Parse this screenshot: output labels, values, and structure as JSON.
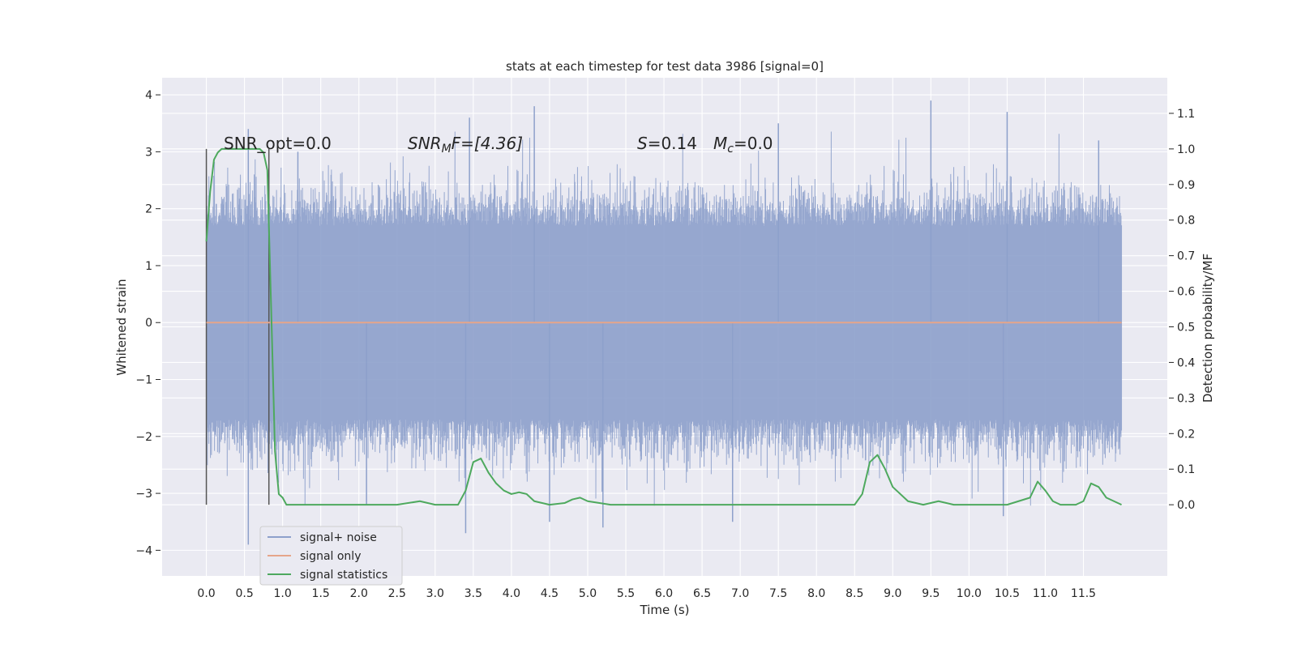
{
  "chart_data": {
    "type": "line",
    "title": "stats at each timestep for test data 3986 [signal=0]",
    "xlabel": "Time (s)",
    "ylabel": "Whitened strain",
    "ylabel_right": "Detection probability/MF",
    "xlim": [
      -0.58,
      12.6
    ],
    "ylim": [
      -4.45,
      4.3
    ],
    "ylim_right": [
      -0.2,
      1.2
    ],
    "x_ticks": [
      "0.0",
      "0.5",
      "1.0",
      "1.5",
      "2.0",
      "2.5",
      "3.0",
      "3.5",
      "4.0",
      "4.5",
      "5.0",
      "5.5",
      "6.0",
      "6.5",
      "7.0",
      "7.5",
      "8.0",
      "8.5",
      "9.0",
      "9.5",
      "10.0",
      "10.5",
      "11.0",
      "11.5"
    ],
    "y_ticks": [
      "4",
      "3",
      "2",
      "1",
      "0",
      "−1",
      "−2",
      "−3",
      "−4"
    ],
    "y_ticks_right": [
      "1.1",
      "1.0",
      "0.9",
      "0.8",
      "0.7",
      "0.6",
      "0.5",
      "0.4",
      "0.3",
      "0.2",
      "0.1",
      "0.0"
    ],
    "grid": true,
    "annotations": {
      "snr_opt": "SNR_opt=0.0",
      "snr_mf_base": "SNR",
      "snr_mf_sub": "M",
      "snr_mf_rest": "F=[4.36]",
      "s_label": "S",
      "s_value": "=0.14",
      "mc_base": "M",
      "mc_sub": "c",
      "mc_value": "=0.0"
    },
    "vlines_x": [
      0.0,
      0.82
    ],
    "legend": {
      "placement": "lower-left",
      "entries": [
        {
          "label": "signal+ noise",
          "color": "#8da0cb"
        },
        {
          "label": "signal only",
          "color": "#e5a58a"
        },
        {
          "label": "signal statistics",
          "color": "#4ea95e"
        }
      ]
    },
    "series": [
      {
        "name": "signal+ noise",
        "color": "#8da0cb",
        "x_range": [
          0.0,
          12.0
        ],
        "envelope_upper_typical": 2.0,
        "envelope_lower_typical": -2.0,
        "peaks": [
          {
            "x": 0.55,
            "y": 3.4
          },
          {
            "x": 0.55,
            "y": -3.9
          },
          {
            "x": 1.2,
            "y": 3.0
          },
          {
            "x": 2.1,
            "y": -3.2
          },
          {
            "x": 3.45,
            "y": 3.6
          },
          {
            "x": 3.4,
            "y": -3.7
          },
          {
            "x": 4.3,
            "y": 3.8
          },
          {
            "x": 4.5,
            "y": -3.5
          },
          {
            "x": 5.2,
            "y": -3.6
          },
          {
            "x": 6.9,
            "y": -3.5
          },
          {
            "x": 7.5,
            "y": 3.5
          },
          {
            "x": 9.5,
            "y": 3.9
          },
          {
            "x": 10.5,
            "y": 3.7
          },
          {
            "x": 10.45,
            "y": -3.4
          },
          {
            "x": 11.7,
            "y": 3.2
          }
        ]
      },
      {
        "name": "signal only",
        "color": "#e5a58a",
        "x": [
          0.0,
          12.0
        ],
        "y": [
          0.0,
          0.0
        ]
      },
      {
        "name": "signal statistics",
        "color": "#4ea95e",
        "axis": "right",
        "x": [
          0.0,
          0.05,
          0.1,
          0.15,
          0.2,
          0.3,
          0.4,
          0.5,
          0.6,
          0.7,
          0.75,
          0.8,
          0.85,
          0.9,
          0.95,
          1.0,
          1.05,
          1.1,
          1.5,
          2.0,
          2.5,
          2.8,
          3.0,
          3.3,
          3.4,
          3.5,
          3.6,
          3.7,
          3.8,
          3.9,
          4.0,
          4.1,
          4.2,
          4.3,
          4.5,
          4.7,
          4.8,
          4.9,
          5.0,
          5.3,
          5.5,
          6.0,
          7.0,
          8.0,
          8.5,
          8.6,
          8.7,
          8.8,
          8.9,
          9.0,
          9.2,
          9.4,
          9.6,
          9.8,
          10.0,
          10.5,
          10.8,
          10.9,
          11.0,
          11.1,
          11.2,
          11.4,
          11.5,
          11.6,
          11.7,
          11.8,
          12.0
        ],
        "y": [
          0.74,
          0.88,
          0.97,
          0.99,
          1.0,
          1.0,
          1.0,
          1.0,
          1.0,
          1.0,
          0.99,
          0.94,
          0.55,
          0.15,
          0.03,
          0.02,
          0.0,
          0.0,
          0.0,
          0.0,
          0.0,
          0.01,
          0.0,
          0.0,
          0.04,
          0.12,
          0.13,
          0.09,
          0.06,
          0.04,
          0.03,
          0.035,
          0.03,
          0.01,
          0.0,
          0.005,
          0.015,
          0.02,
          0.01,
          0.0,
          0.0,
          0.0,
          0.0,
          0.0,
          0.0,
          0.03,
          0.12,
          0.14,
          0.1,
          0.05,
          0.01,
          0.0,
          0.01,
          0.0,
          0.0,
          0.0,
          0.02,
          0.065,
          0.04,
          0.01,
          0.0,
          0.0,
          0.01,
          0.06,
          0.05,
          0.02,
          0.0
        ]
      }
    ]
  }
}
